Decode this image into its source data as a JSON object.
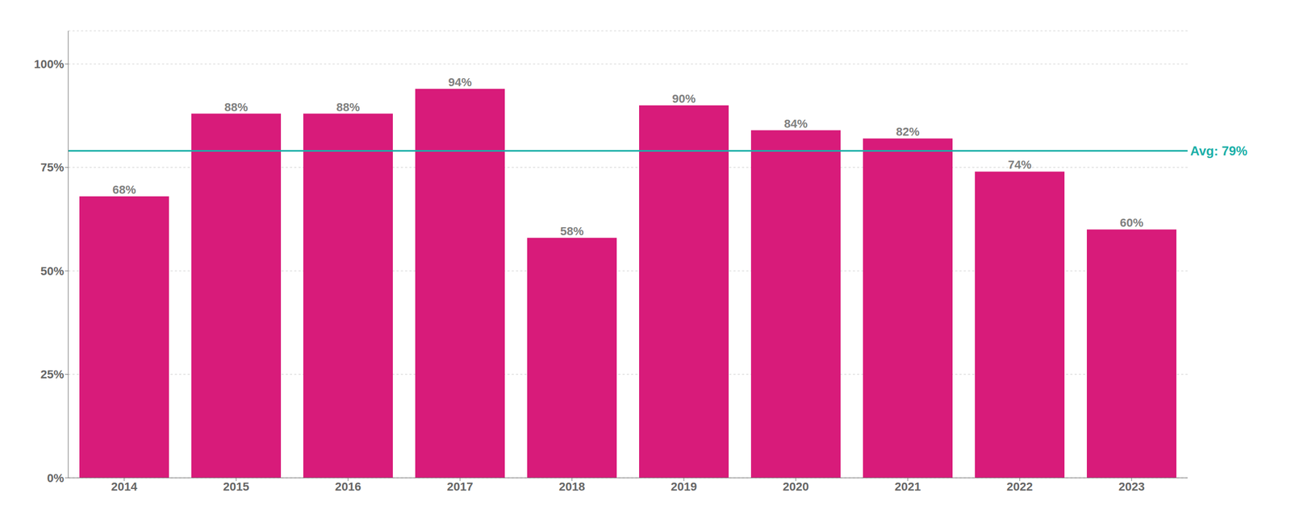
{
  "chart_data": {
    "type": "bar",
    "categories": [
      "2014",
      "2015",
      "2016",
      "2017",
      "2018",
      "2019",
      "2020",
      "2021",
      "2022",
      "2023"
    ],
    "values": [
      68,
      88,
      88,
      94,
      58,
      90,
      84,
      82,
      74,
      60
    ],
    "value_labels": [
      "68%",
      "88%",
      "88%",
      "94%",
      "58%",
      "90%",
      "84%",
      "82%",
      "74%",
      "60%"
    ],
    "data_labels": true,
    "color": "#D81B7A",
    "ylim": [
      0,
      108
    ],
    "yticks": [
      {
        "value": 0,
        "label": "0%"
      },
      {
        "value": 25,
        "label": "25%"
      },
      {
        "value": 50,
        "label": "50%"
      },
      {
        "value": 75,
        "label": "75%"
      },
      {
        "value": 100,
        "label": "100%"
      }
    ],
    "grid": true,
    "annotations": [
      {
        "text": "Avg: 79%",
        "y": 79,
        "color": "#1AAFA8"
      }
    ]
  }
}
